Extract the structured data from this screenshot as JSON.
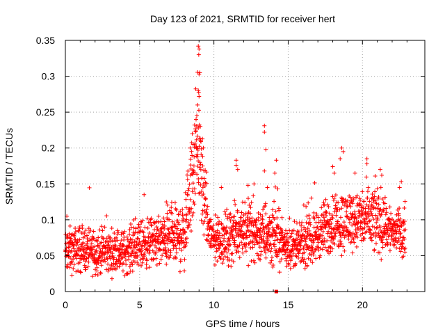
{
  "chart_data": {
    "type": "scatter",
    "title": "Day 123 of 2021, SRMTID for receiver hert",
    "xlabel": "GPS time / hours",
    "ylabel": "SRMTID / TECUs",
    "xlim": [
      0,
      24.2
    ],
    "ylim": [
      0,
      0.35
    ],
    "xticks": [
      0,
      5,
      10,
      15,
      20
    ],
    "xtick_labels": [
      "0",
      "5",
      "10",
      "15",
      "20"
    ],
    "yticks": [
      0,
      0.05,
      0.1,
      0.15,
      0.2,
      0.25,
      0.3,
      0.35
    ],
    "ytick_labels": [
      "0",
      "0.05",
      "0.1",
      "0.15",
      "0.2",
      "0.25",
      "0.3",
      "0.35"
    ],
    "grid": true,
    "marker": "plus",
    "color": "#ff0000",
    "envelope": [
      {
        "t": 0.0,
        "center": 0.055,
        "spread": 0.02
      },
      {
        "t": 1.0,
        "center": 0.06,
        "spread": 0.018
      },
      {
        "t": 2.0,
        "center": 0.055,
        "spread": 0.018
      },
      {
        "t": 3.0,
        "center": 0.055,
        "spread": 0.018
      },
      {
        "t": 4.0,
        "center": 0.055,
        "spread": 0.018
      },
      {
        "t": 5.0,
        "center": 0.065,
        "spread": 0.02
      },
      {
        "t": 6.0,
        "center": 0.07,
        "spread": 0.02
      },
      {
        "t": 7.0,
        "center": 0.072,
        "spread": 0.022
      },
      {
        "t": 8.0,
        "center": 0.08,
        "spread": 0.03
      },
      {
        "t": 8.5,
        "center": 0.15,
        "spread": 0.04
      },
      {
        "t": 8.9,
        "center": 0.22,
        "spread": 0.06
      },
      {
        "t": 9.2,
        "center": 0.15,
        "spread": 0.04
      },
      {
        "t": 9.6,
        "center": 0.09,
        "spread": 0.025
      },
      {
        "t": 10.0,
        "center": 0.07,
        "spread": 0.02
      },
      {
        "t": 11.0,
        "center": 0.075,
        "spread": 0.022
      },
      {
        "t": 12.0,
        "center": 0.09,
        "spread": 0.025
      },
      {
        "t": 13.0,
        "center": 0.08,
        "spread": 0.025
      },
      {
        "t": 14.0,
        "center": 0.08,
        "spread": 0.025
      },
      {
        "t": 15.0,
        "center": 0.06,
        "spread": 0.015
      },
      {
        "t": 16.0,
        "center": 0.065,
        "spread": 0.018
      },
      {
        "t": 17.0,
        "center": 0.08,
        "spread": 0.022
      },
      {
        "t": 18.0,
        "center": 0.095,
        "spread": 0.025
      },
      {
        "t": 19.0,
        "center": 0.1,
        "spread": 0.025
      },
      {
        "t": 20.0,
        "center": 0.1,
        "spread": 0.025
      },
      {
        "t": 21.0,
        "center": 0.1,
        "spread": 0.03
      },
      {
        "t": 22.0,
        "center": 0.085,
        "spread": 0.02
      },
      {
        "t": 22.9,
        "center": 0.08,
        "spread": 0.018
      }
    ],
    "spikes": [
      {
        "t": 8.95,
        "y": 0.342
      },
      {
        "t": 9.0,
        "y": 0.338
      },
      {
        "t": 8.98,
        "y": 0.33
      },
      {
        "t": 9.05,
        "y": 0.305
      },
      {
        "t": 9.0,
        "y": 0.303
      },
      {
        "t": 8.95,
        "y": 0.28
      },
      {
        "t": 9.0,
        "y": 0.272
      },
      {
        "t": 8.9,
        "y": 0.26
      },
      {
        "t": 8.85,
        "y": 0.245
      },
      {
        "t": 8.8,
        "y": 0.24
      },
      {
        "t": 8.7,
        "y": 0.232
      },
      {
        "t": 8.95,
        "y": 0.228
      },
      {
        "t": 9.1,
        "y": 0.21
      },
      {
        "t": 8.6,
        "y": 0.205
      },
      {
        "t": 8.4,
        "y": 0.2
      },
      {
        "t": 9.25,
        "y": 0.175
      },
      {
        "t": 13.4,
        "y": 0.231
      },
      {
        "t": 13.4,
        "y": 0.222
      },
      {
        "t": 13.5,
        "y": 0.198
      },
      {
        "t": 13.4,
        "y": 0.168
      },
      {
        "t": 13.6,
        "y": 0.145
      },
      {
        "t": 11.5,
        "y": 0.183
      },
      {
        "t": 11.5,
        "y": 0.176
      },
      {
        "t": 11.6,
        "y": 0.17
      },
      {
        "t": 14.2,
        "y": 0.183
      },
      {
        "t": 14.1,
        "y": 0.165
      },
      {
        "t": 14.3,
        "y": 0.143
      },
      {
        "t": 18.6,
        "y": 0.2
      },
      {
        "t": 18.7,
        "y": 0.195
      },
      {
        "t": 18.5,
        "y": 0.185
      },
      {
        "t": 18.0,
        "y": 0.174
      },
      {
        "t": 18.1,
        "y": 0.165
      },
      {
        "t": 20.3,
        "y": 0.185
      },
      {
        "t": 20.3,
        "y": 0.178
      },
      {
        "t": 19.5,
        "y": 0.165
      },
      {
        "t": 21.2,
        "y": 0.17
      },
      {
        "t": 21.3,
        "y": 0.162
      },
      {
        "t": 22.5,
        "y": 0.145
      },
      {
        "t": 12.7,
        "y": 0.15
      },
      {
        "t": 12.3,
        "y": 0.148
      },
      {
        "t": 10.5,
        "y": 0.145
      },
      {
        "t": 5.3,
        "y": 0.135
      },
      {
        "t": 6.8,
        "y": 0.125
      },
      {
        "t": 0.1,
        "y": 0.105
      }
    ],
    "outliers": [
      {
        "t": 14.2,
        "y": 0.0
      }
    ]
  }
}
